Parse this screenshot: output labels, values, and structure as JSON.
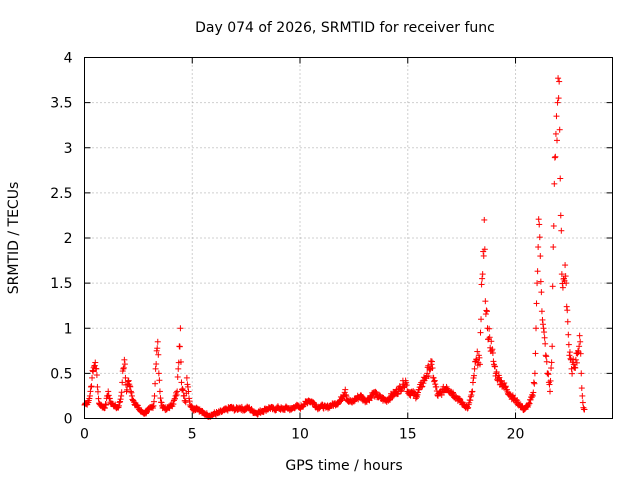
{
  "chart_data": {
    "type": "scatter",
    "title": "Day 074 of 2026, SRMTID for receiver func",
    "xlabel": "GPS time / hours",
    "ylabel": "SRMTID / TECUs",
    "xlim": [
      0,
      24.5
    ],
    "ylim": [
      0,
      4
    ],
    "xticks": [
      "0",
      "5",
      "10",
      "15",
      "20"
    ],
    "yticks": [
      "0",
      "0.5",
      "1",
      "1.5",
      "2",
      "2.5",
      "3",
      "3.5",
      "4"
    ],
    "grid": true,
    "marker": "+",
    "series": [
      {
        "name": "SRMTID",
        "color": "#ff0000",
        "points": [
          [
            0.0,
            0.15
          ],
          [
            0.05,
            0.17
          ],
          [
            0.1,
            0.16
          ],
          [
            0.15,
            0.18
          ],
          [
            0.2,
            0.2
          ],
          [
            0.25,
            0.25
          ],
          [
            0.3,
            0.35
          ],
          [
            0.35,
            0.45
          ],
          [
            0.4,
            0.52
          ],
          [
            0.45,
            0.58
          ],
          [
            0.5,
            0.62
          ],
          [
            0.55,
            0.55
          ],
          [
            0.6,
            0.35
          ],
          [
            0.65,
            0.22
          ],
          [
            0.7,
            0.16
          ],
          [
            0.8,
            0.14
          ],
          [
            0.9,
            0.12
          ],
          [
            1.0,
            0.15
          ],
          [
            1.05,
            0.25
          ],
          [
            1.1,
            0.3
          ],
          [
            1.15,
            0.22
          ],
          [
            1.2,
            0.18
          ],
          [
            1.3,
            0.16
          ],
          [
            1.4,
            0.14
          ],
          [
            1.5,
            0.12
          ],
          [
            1.6,
            0.14
          ],
          [
            1.7,
            0.25
          ],
          [
            1.75,
            0.4
          ],
          [
            1.8,
            0.55
          ],
          [
            1.85,
            0.65
          ],
          [
            1.9,
            0.45
          ],
          [
            1.95,
            0.3
          ],
          [
            2.0,
            0.38
          ],
          [
            2.05,
            0.42
          ],
          [
            2.1,
            0.36
          ],
          [
            2.15,
            0.3
          ],
          [
            2.2,
            0.25
          ],
          [
            2.3,
            0.18
          ],
          [
            2.4,
            0.15
          ],
          [
            2.5,
            0.12
          ],
          [
            2.6,
            0.08
          ],
          [
            2.7,
            0.07
          ],
          [
            2.8,
            0.06
          ],
          [
            2.9,
            0.08
          ],
          [
            3.0,
            0.1
          ],
          [
            3.1,
            0.12
          ],
          [
            3.2,
            0.14
          ],
          [
            3.25,
            0.25
          ],
          [
            3.3,
            0.55
          ],
          [
            3.35,
            0.75
          ],
          [
            3.4,
            0.85
          ],
          [
            3.45,
            0.5
          ],
          [
            3.5,
            0.3
          ],
          [
            3.55,
            0.18
          ],
          [
            3.6,
            0.14
          ],
          [
            3.7,
            0.12
          ],
          [
            3.8,
            0.1
          ],
          [
            3.9,
            0.12
          ],
          [
            4.0,
            0.14
          ],
          [
            4.1,
            0.16
          ],
          [
            4.2,
            0.22
          ],
          [
            4.3,
            0.3
          ],
          [
            4.35,
            0.55
          ],
          [
            4.4,
            0.8
          ],
          [
            4.45,
            1.0
          ],
          [
            4.5,
            0.4
          ],
          [
            4.6,
            0.25
          ],
          [
            4.7,
            0.18
          ],
          [
            4.75,
            0.45
          ],
          [
            4.8,
            0.35
          ],
          [
            4.9,
            0.15
          ],
          [
            5.0,
            0.12
          ],
          [
            5.1,
            0.1
          ],
          [
            5.2,
            0.12
          ],
          [
            5.3,
            0.1
          ],
          [
            5.4,
            0.08
          ],
          [
            5.5,
            0.06
          ],
          [
            5.6,
            0.05
          ],
          [
            5.7,
            0.04
          ],
          [
            5.8,
            0.03
          ],
          [
            5.9,
            0.04
          ],
          [
            6.0,
            0.05
          ],
          [
            6.2,
            0.06
          ],
          [
            6.4,
            0.08
          ],
          [
            6.6,
            0.1
          ],
          [
            6.8,
            0.12
          ],
          [
            7.0,
            0.1
          ],
          [
            7.2,
            0.12
          ],
          [
            7.4,
            0.1
          ],
          [
            7.6,
            0.12
          ],
          [
            7.8,
            0.08
          ],
          [
            8.0,
            0.06
          ],
          [
            8.2,
            0.08
          ],
          [
            8.4,
            0.1
          ],
          [
            8.6,
            0.12
          ],
          [
            8.8,
            0.1
          ],
          [
            9.0,
            0.12
          ],
          [
            9.2,
            0.1
          ],
          [
            9.4,
            0.12
          ],
          [
            9.6,
            0.1
          ],
          [
            9.8,
            0.14
          ],
          [
            10.0,
            0.12
          ],
          [
            10.2,
            0.16
          ],
          [
            10.4,
            0.2
          ],
          [
            10.6,
            0.18
          ],
          [
            10.8,
            0.12
          ],
          [
            11.0,
            0.14
          ],
          [
            11.2,
            0.12
          ],
          [
            11.4,
            0.14
          ],
          [
            11.6,
            0.16
          ],
          [
            11.8,
            0.18
          ],
          [
            12.0,
            0.25
          ],
          [
            12.1,
            0.32
          ],
          [
            12.2,
            0.2
          ],
          [
            12.4,
            0.18
          ],
          [
            12.6,
            0.22
          ],
          [
            12.8,
            0.25
          ],
          [
            13.0,
            0.2
          ],
          [
            13.2,
            0.22
          ],
          [
            13.4,
            0.28
          ],
          [
            13.6,
            0.25
          ],
          [
            13.8,
            0.22
          ],
          [
            14.0,
            0.2
          ],
          [
            14.2,
            0.24
          ],
          [
            14.4,
            0.28
          ],
          [
            14.6,
            0.32
          ],
          [
            14.8,
            0.38
          ],
          [
            14.9,
            0.42
          ],
          [
            15.0,
            0.3
          ],
          [
            15.2,
            0.28
          ],
          [
            15.4,
            0.25
          ],
          [
            15.6,
            0.35
          ],
          [
            15.8,
            0.45
          ],
          [
            15.9,
            0.5
          ],
          [
            16.0,
            0.55
          ],
          [
            16.1,
            0.6
          ],
          [
            16.2,
            0.45
          ],
          [
            16.3,
            0.35
          ],
          [
            16.4,
            0.25
          ],
          [
            16.6,
            0.3
          ],
          [
            16.8,
            0.35
          ],
          [
            17.0,
            0.3
          ],
          [
            17.2,
            0.25
          ],
          [
            17.4,
            0.2
          ],
          [
            17.6,
            0.15
          ],
          [
            17.8,
            0.12
          ],
          [
            18.0,
            0.3
          ],
          [
            18.1,
            0.55
          ],
          [
            18.2,
            0.65
          ],
          [
            18.3,
            0.7
          ],
          [
            18.35,
            0.6
          ],
          [
            18.4,
            1.1
          ],
          [
            18.45,
            1.55
          ],
          [
            18.5,
            1.85
          ],
          [
            18.55,
            2.2
          ],
          [
            18.6,
            1.3
          ],
          [
            18.7,
            1.0
          ],
          [
            18.8,
            0.9
          ],
          [
            18.9,
            0.75
          ],
          [
            19.0,
            0.6
          ],
          [
            19.1,
            0.5
          ],
          [
            19.2,
            0.45
          ],
          [
            19.3,
            0.42
          ],
          [
            19.4,
            0.38
          ],
          [
            19.6,
            0.32
          ],
          [
            19.8,
            0.25
          ],
          [
            20.0,
            0.2
          ],
          [
            20.2,
            0.15
          ],
          [
            20.4,
            0.1
          ],
          [
            20.6,
            0.15
          ],
          [
            20.8,
            0.25
          ],
          [
            20.9,
            0.5
          ],
          [
            20.95,
            1.0
          ],
          [
            21.0,
            1.5
          ],
          [
            21.05,
            1.9
          ],
          [
            21.1,
            2.15
          ],
          [
            21.15,
            1.8
          ],
          [
            21.2,
            1.4
          ],
          [
            21.3,
            1.0
          ],
          [
            21.4,
            0.7
          ],
          [
            21.5,
            0.5
          ],
          [
            21.6,
            0.3
          ],
          [
            21.7,
            0.8
          ],
          [
            21.75,
            1.9
          ],
          [
            21.8,
            2.6
          ],
          [
            21.85,
            2.9
          ],
          [
            21.9,
            3.35
          ],
          [
            21.95,
            3.5
          ],
          [
            22.0,
            3.55
          ],
          [
            22.05,
            3.2
          ],
          [
            22.1,
            2.25
          ],
          [
            22.15,
            1.6
          ],
          [
            22.2,
            1.45
          ],
          [
            22.25,
            1.55
          ],
          [
            22.3,
            1.7
          ],
          [
            22.35,
            1.5
          ],
          [
            22.4,
            1.2
          ],
          [
            22.5,
            0.7
          ],
          [
            22.6,
            0.55
          ],
          [
            22.7,
            0.6
          ],
          [
            22.8,
            0.65
          ],
          [
            22.9,
            0.75
          ],
          [
            22.95,
            0.8
          ],
          [
            23.0,
            0.85
          ],
          [
            23.05,
            0.5
          ],
          [
            23.1,
            0.25
          ],
          [
            23.15,
            0.12
          ],
          [
            23.2,
            0.1
          ]
        ]
      }
    ]
  }
}
